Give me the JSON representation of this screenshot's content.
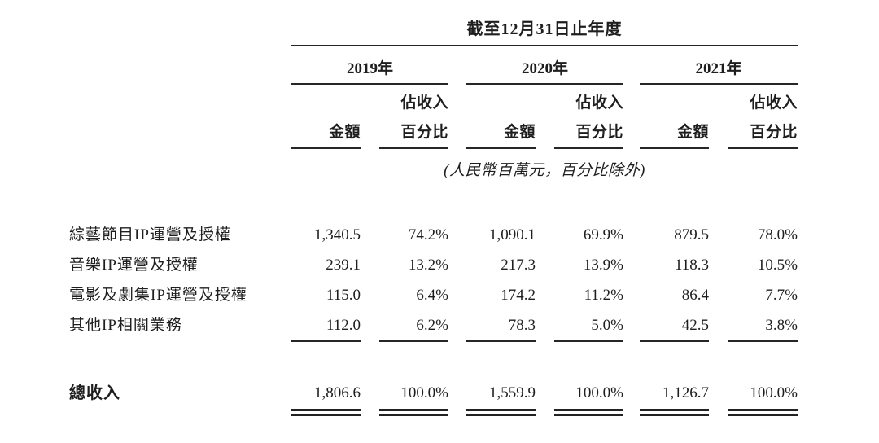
{
  "document": {
    "title": "截至12月31日止年度",
    "unit_note": "(人民幣百萬元，百分比除外)",
    "years": [
      "2019年",
      "2020年",
      "2021年"
    ],
    "col_headers": {
      "amount": "金額",
      "pct_top": "佔收入",
      "pct_bottom": "百分比"
    },
    "rows": [
      {
        "label": "綜藝節目IP運營及授權",
        "values": [
          "1,340.5",
          "74.2%",
          "1,090.1",
          "69.9%",
          "879.5",
          "78.0%"
        ]
      },
      {
        "label": "音樂IP運營及授權",
        "values": [
          "239.1",
          "13.2%",
          "217.3",
          "13.9%",
          "118.3",
          "10.5%"
        ]
      },
      {
        "label": "電影及劇集IP運營及授權",
        "values": [
          "115.0",
          "6.4%",
          "174.2",
          "11.2%",
          "86.4",
          "7.7%"
        ]
      },
      {
        "label": "其他IP相關業務",
        "values": [
          "112.0",
          "6.2%",
          "78.3",
          "5.0%",
          "42.5",
          "3.8%"
        ]
      }
    ],
    "total": {
      "label": "總收入",
      "values": [
        "1,806.6",
        "100.0%",
        "1,559.9",
        "100.0%",
        "1,126.7",
        "100.0%"
      ]
    },
    "colors": {
      "text": "#1e1e1e",
      "rule": "#262626",
      "background": "#ffffff"
    }
  }
}
